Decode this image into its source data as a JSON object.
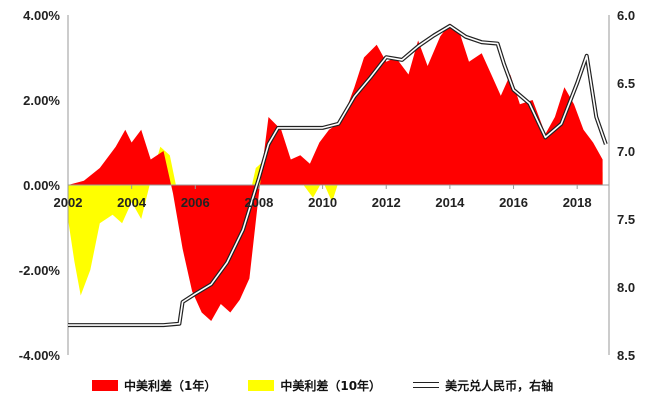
{
  "chart_data": {
    "type": "area",
    "title": "",
    "xlabel": "",
    "ylabel": "",
    "x_ticks": [
      "2002",
      "2004",
      "2006",
      "2008",
      "2010",
      "2012",
      "2014",
      "2016",
      "2018"
    ],
    "y_left_ticks": [
      "4.00%",
      "2.00%",
      "0.00%",
      "-2.00%",
      "-4.00%"
    ],
    "y_right_ticks": [
      "6.0",
      "6.5",
      "7.0",
      "7.5",
      "8.0",
      "8.5"
    ],
    "y_left_range": [
      -4,
      4
    ],
    "y_right_range": [
      8.5,
      6.0
    ],
    "y_right_inverted": true,
    "x_range": [
      2002,
      2019
    ],
    "legend_position": "bottom",
    "grid": false,
    "colors": {
      "spread_1y": "#ff0000",
      "spread_10y": "#ffff00",
      "usdcny": "#222222"
    },
    "series": [
      {
        "name": "中美利差（1年）",
        "axis": "left",
        "style": "area",
        "x": [
          2002.0,
          2002.5,
          2003.0,
          2003.5,
          2003.8,
          2004.0,
          2004.3,
          2004.6,
          2005.0,
          2005.3,
          2005.6,
          2005.9,
          2006.2,
          2006.5,
          2006.8,
          2007.1,
          2007.4,
          2007.7,
          2008.0,
          2008.3,
          2008.7,
          2009.0,
          2009.3,
          2009.6,
          2009.9,
          2010.2,
          2010.6,
          2011.0,
          2011.3,
          2011.7,
          2012.0,
          2012.3,
          2012.7,
          2013.0,
          2013.3,
          2013.7,
          2014.0,
          2014.3,
          2014.6,
          2015.0,
          2015.3,
          2015.6,
          2015.9,
          2016.2,
          2016.6,
          2017.0,
          2017.3,
          2017.6,
          2017.9,
          2018.2,
          2018.5,
          2018.8
        ],
        "values": [
          0.0,
          0.1,
          0.4,
          0.9,
          1.3,
          1.0,
          1.3,
          0.6,
          0.8,
          -0.2,
          -1.5,
          -2.5,
          -3.0,
          -3.2,
          -2.8,
          -3.0,
          -2.7,
          -2.2,
          -0.2,
          1.6,
          1.3,
          0.6,
          0.7,
          0.5,
          1.0,
          1.3,
          1.5,
          2.3,
          3.0,
          3.3,
          2.9,
          3.0,
          2.6,
          3.4,
          2.8,
          3.5,
          3.8,
          3.6,
          2.9,
          3.1,
          2.6,
          2.1,
          2.6,
          1.9,
          2.0,
          1.2,
          1.6,
          2.3,
          1.9,
          1.3,
          1.0,
          0.6
        ]
      },
      {
        "name": "中美利差（10年）",
        "axis": "left",
        "style": "area",
        "x": [
          2002.0,
          2002.2,
          2002.4,
          2002.7,
          2003.0,
          2003.4,
          2003.7,
          2004.0,
          2004.3,
          2004.6,
          2004.9,
          2005.2,
          2005.5,
          2005.8,
          2006.1,
          2006.4,
          2006.7,
          2007.0,
          2007.3,
          2007.6,
          2007.9,
          2008.2,
          2008.5,
          2008.8,
          2009.1,
          2009.4,
          2009.7,
          2010.0,
          2010.3,
          2010.6,
          2011.0,
          2011.3,
          2011.7,
          2012.0,
          2012.4,
          2012.8,
          2013.1,
          2013.5,
          2013.9,
          2014.2,
          2014.6,
          2014.9,
          2015.2,
          2015.6,
          2016.0,
          2016.4,
          2016.8,
          2017.2,
          2017.6,
          2018.0,
          2018.4,
          2018.8
        ],
        "values": [
          -0.8,
          -1.8,
          -2.6,
          -2.0,
          -0.9,
          -0.7,
          -0.9,
          -0.4,
          -0.8,
          0.1,
          0.9,
          0.7,
          -0.4,
          -1.2,
          -1.9,
          -2.1,
          -2.0,
          -1.7,
          -1.4,
          -0.6,
          0.4,
          0.6,
          0.8,
          0.3,
          0.4,
          0.0,
          -0.3,
          0.1,
          -0.4,
          0.3,
          1.0,
          1.6,
          1.6,
          1.5,
          1.8,
          1.6,
          1.4,
          1.7,
          2.0,
          1.6,
          1.8,
          1.6,
          1.3,
          1.0,
          1.1,
          0.8,
          0.9,
          1.0,
          1.3,
          1.2,
          0.8,
          0.3
        ]
      },
      {
        "name": "美元兑人民币，右轴",
        "axis": "right",
        "style": "double-line",
        "x": [
          2002.0,
          2003.0,
          2004.0,
          2005.0,
          2005.5,
          2005.6,
          2006.0,
          2006.5,
          2007.0,
          2007.5,
          2008.0,
          2008.3,
          2008.6,
          2009.0,
          2010.0,
          2010.5,
          2011.0,
          2011.5,
          2012.0,
          2012.5,
          2013.0,
          2013.5,
          2014.0,
          2014.5,
          2015.0,
          2015.5,
          2015.7,
          2016.0,
          2016.5,
          2017.0,
          2017.5,
          2018.0,
          2018.3,
          2018.6,
          2018.9
        ],
        "values": [
          8.28,
          8.28,
          8.28,
          8.28,
          8.27,
          8.11,
          8.05,
          7.98,
          7.82,
          7.58,
          7.2,
          6.95,
          6.83,
          6.83,
          6.83,
          6.8,
          6.6,
          6.46,
          6.31,
          6.33,
          6.23,
          6.15,
          6.08,
          6.16,
          6.2,
          6.21,
          6.36,
          6.55,
          6.65,
          6.9,
          6.8,
          6.5,
          6.3,
          6.75,
          6.95
        ]
      }
    ]
  }
}
